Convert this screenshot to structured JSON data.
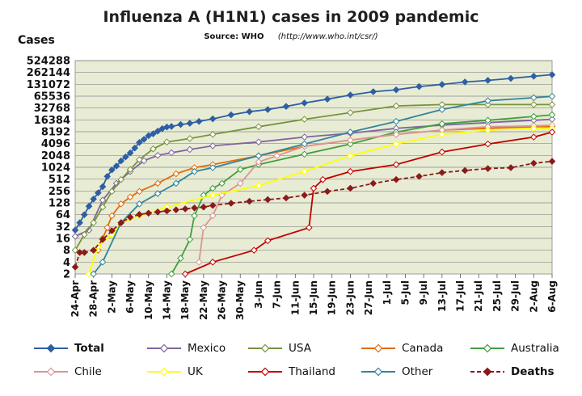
{
  "chart_data": {
    "type": "line",
    "title": "Influenza A (H1N1) cases in 2009 pandemic",
    "source_label": "Source: WHO",
    "source_url": "(http://www.who.int/csr/)",
    "ylabel": "Cases",
    "yscale": "log2",
    "ylim": [
      2,
      524288
    ],
    "yticks": [
      "2",
      "4",
      "8",
      "16",
      "32",
      "64",
      "128",
      "256",
      "512",
      "1024",
      "2048",
      "4096",
      "8192",
      "16384",
      "32768",
      "65536",
      "131072",
      "262144",
      "524288"
    ],
    "xlim_day": [
      0,
      104
    ],
    "xtick_labels": [
      "24-Apr",
      "28-Apr",
      "2-May",
      "6-May",
      "10-May",
      "14-May",
      "18-May",
      "22-May",
      "26-May",
      "30-May",
      "3-Jun",
      "7-Jun",
      "11-Jun",
      "15-Jun",
      "19-Jun",
      "23-Jun",
      "27-Jun",
      "1-Jul",
      "5-Jul",
      "9-Jul",
      "13-Jul",
      "17-Jul",
      "21-Jul",
      "25-Jul",
      "29-Jul",
      "2-Aug",
      "6-Aug"
    ],
    "grid": true,
    "legend_position": "bottom",
    "plot_background": "#e8ecd4",
    "series": [
      {
        "name": "Total",
        "color": "#2e5fa3",
        "marker": "diamond-filled",
        "bold": true,
        "x": [
          0,
          1,
          2,
          3,
          4,
          5,
          6,
          7,
          8,
          9,
          10,
          11,
          12,
          13,
          14,
          15,
          16,
          17,
          18,
          19,
          20,
          21,
          23,
          25,
          27,
          30,
          34,
          38,
          42,
          46,
          50,
          55,
          60,
          65,
          70,
          75,
          80,
          85,
          90,
          95,
          100,
          104
        ],
        "y": [
          26,
          40,
          64,
          105,
          160,
          230,
          330,
          600,
          880,
          1100,
          1490,
          1880,
          2370,
          3160,
          4380,
          5250,
          6500,
          7250,
          8480,
          9830,
          10800,
          11160,
          12500,
          13400,
          15000,
          17400,
          22000,
          26500,
          30000,
          36000,
          44000,
          55000,
          70000,
          85000,
          95000,
          115000,
          130000,
          150000,
          165000,
          185000,
          210000,
          230000
        ]
      },
      {
        "name": "Mexico",
        "color": "#8064a2",
        "marker": "diamond-open",
        "x": [
          0,
          3,
          6,
          9,
          12,
          15,
          18,
          21,
          25,
          30,
          40,
          50,
          60,
          70,
          80,
          90,
          100,
          104
        ],
        "y": [
          18,
          26,
          150,
          400,
          800,
          1500,
          2050,
          2400,
          2900,
          3600,
          4500,
          6000,
          7500,
          10000,
          12000,
          14000,
          16000,
          17000
        ]
      },
      {
        "name": "USA",
        "color": "#77933c",
        "marker": "diamond-open",
        "x": [
          0,
          2,
          4,
          6,
          8,
          10,
          12,
          14,
          17,
          20,
          25,
          30,
          40,
          50,
          60,
          70,
          80,
          90,
          100,
          104
        ],
        "y": [
          8,
          20,
          40,
          100,
          250,
          500,
          900,
          1600,
          3000,
          4500,
          5500,
          7000,
          11000,
          17000,
          25000,
          37000,
          40000,
          40000,
          40000,
          40000
        ]
      },
      {
        "name": "Canada",
        "color": "#e46c0a",
        "marker": "diamond-open",
        "x": [
          5,
          6,
          7,
          8,
          10,
          12,
          14,
          18,
          22,
          26,
          30,
          40,
          50,
          60,
          70,
          80,
          90,
          100,
          104
        ],
        "y": [
          8,
          16,
          30,
          60,
          120,
          180,
          250,
          400,
          700,
          1000,
          1200,
          2000,
          3500,
          5000,
          7000,
          9000,
          10000,
          11000,
          11000
        ]
      },
      {
        "name": "Australia",
        "color": "#3f9f3f",
        "marker": "diamond-open",
        "x": [
          21,
          23,
          25,
          26,
          28,
          30,
          32,
          36,
          40,
          50,
          60,
          70,
          80,
          90,
          100,
          104
        ],
        "y": [
          2,
          5,
          15,
          60,
          200,
          300,
          400,
          900,
          1200,
          2200,
          4000,
          8000,
          13000,
          16000,
          20000,
          22000
        ]
      },
      {
        "name": "Chile",
        "color": "#d99694",
        "marker": "diamond-open",
        "x": [
          27,
          28,
          30,
          32,
          36,
          40,
          44,
          50,
          60,
          70,
          80,
          90,
          100,
          104
        ],
        "y": [
          4,
          30,
          60,
          200,
          400,
          1400,
          2000,
          3500,
          5000,
          7000,
          9000,
          11000,
          11500,
          12000
        ]
      },
      {
        "name": "UK",
        "color": "#ffff00",
        "marker": "diamond-open",
        "x": [
          3,
          5,
          8,
          10,
          14,
          20,
          30,
          40,
          50,
          60,
          70,
          80,
          90,
          100,
          104
        ],
        "y": [
          2,
          10,
          20,
          40,
          60,
          100,
          200,
          350,
          800,
          2000,
          4000,
          7000,
          9000,
          10000,
          10000
        ]
      },
      {
        "name": "Thailand",
        "color": "#c00000",
        "marker": "diamond-open",
        "x": [
          18,
          24,
          30,
          39,
          42,
          51,
          52,
          54,
          60,
          70,
          80,
          90,
          100,
          104
        ],
        "y": [
          1,
          2,
          4,
          8,
          14,
          30,
          300,
          500,
          800,
          1200,
          2500,
          4000,
          6000,
          8000
        ]
      },
      {
        "name": "Other",
        "color": "#31849b",
        "marker": "diamond-open",
        "x": [
          4,
          6,
          10,
          14,
          18,
          22,
          26,
          30,
          40,
          50,
          60,
          70,
          80,
          90,
          100,
          104
        ],
        "y": [
          2,
          4,
          40,
          120,
          220,
          400,
          800,
          1000,
          2000,
          4000,
          8000,
          15000,
          30000,
          50000,
          60000,
          65000
        ]
      },
      {
        "name": "Deaths",
        "color": "#8b1a1a",
        "marker": "diamond-filled",
        "dashed": true,
        "bold": true,
        "x": [
          0,
          1,
          2,
          4,
          6,
          8,
          10,
          12,
          14,
          16,
          18,
          20,
          22,
          24,
          26,
          28,
          30,
          34,
          38,
          42,
          46,
          50,
          55,
          60,
          65,
          70,
          75,
          80,
          85,
          90,
          95,
          100,
          104
        ],
        "y": [
          3,
          7,
          7,
          8,
          15,
          25,
          40,
          55,
          65,
          70,
          75,
          80,
          85,
          90,
          95,
          100,
          110,
          125,
          140,
          155,
          170,
          200,
          250,
          300,
          400,
          500,
          600,
          750,
          850,
          950,
          1000,
          1300,
          1450
        ]
      }
    ]
  }
}
